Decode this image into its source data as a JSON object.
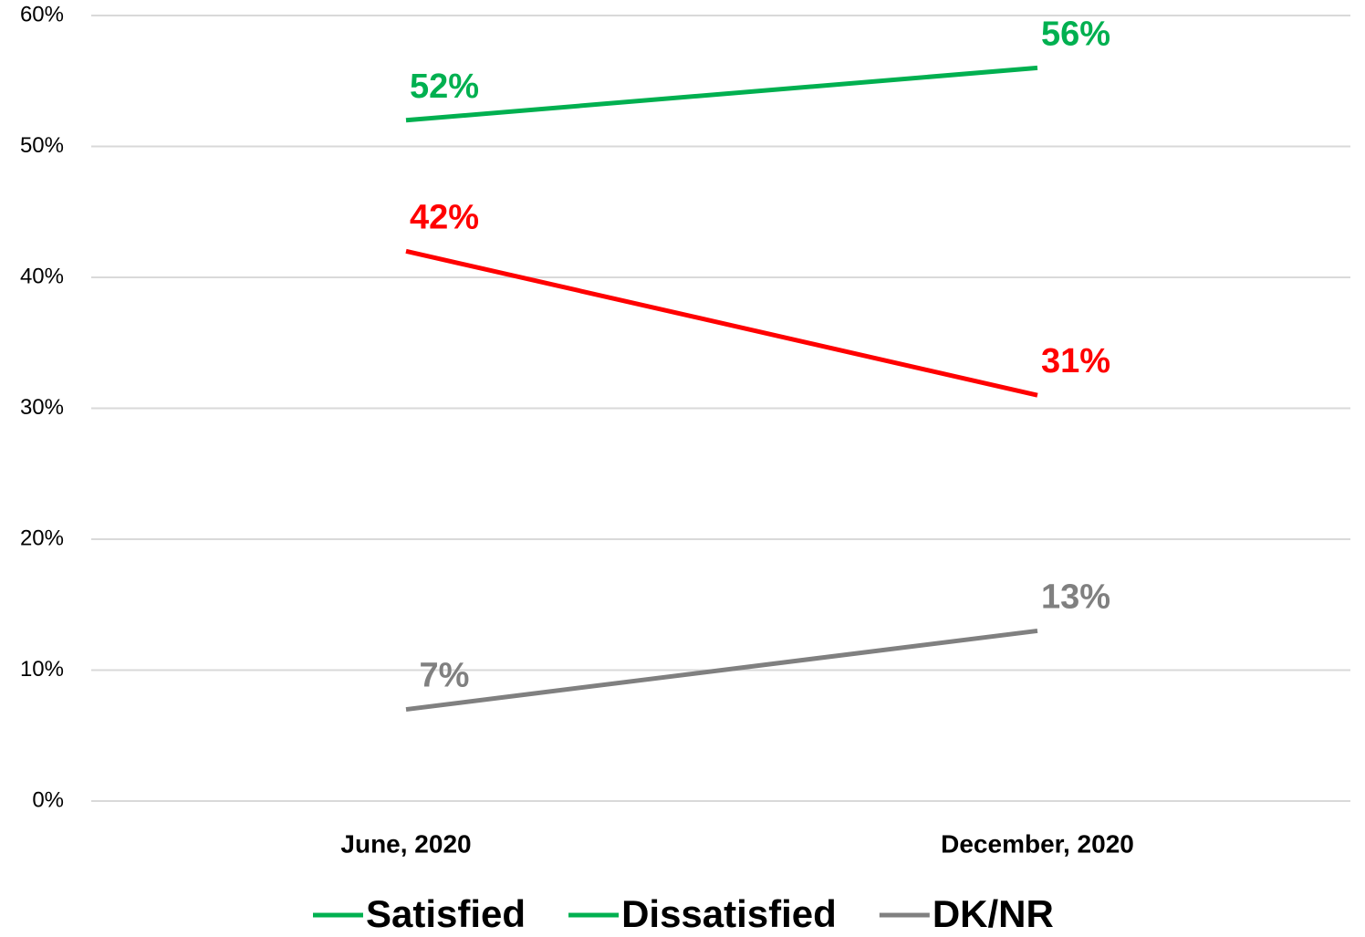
{
  "chart_data": {
    "type": "line",
    "categories": [
      "June, 2020",
      "December, 2020"
    ],
    "series": [
      {
        "name": "Satisfied",
        "color": "#00b050",
        "legend_color": "#00b050",
        "values": [
          52,
          56
        ],
        "value_labels": [
          "52%",
          "56%"
        ]
      },
      {
        "name": "Dissatisfied",
        "color": "#ff0000",
        "legend_color": "#00b050",
        "values": [
          42,
          31
        ],
        "value_labels": [
          "42%",
          "31%"
        ]
      },
      {
        "name": "DK/NR",
        "color": "#808080",
        "legend_color": "#808080",
        "values": [
          7,
          13
        ],
        "value_labels": [
          "7%",
          "13%"
        ]
      }
    ],
    "ylim": [
      0,
      60
    ],
    "yticks": [
      {
        "value": 0,
        "label": "0%"
      },
      {
        "value": 10,
        "label": "10%"
      },
      {
        "value": 20,
        "label": "20%"
      },
      {
        "value": 30,
        "label": "30%"
      },
      {
        "value": 40,
        "label": "40%"
      },
      {
        "value": 50,
        "label": "50%"
      },
      {
        "value": 60,
        "label": "60%"
      }
    ],
    "grid": true,
    "legend": "bottom"
  }
}
